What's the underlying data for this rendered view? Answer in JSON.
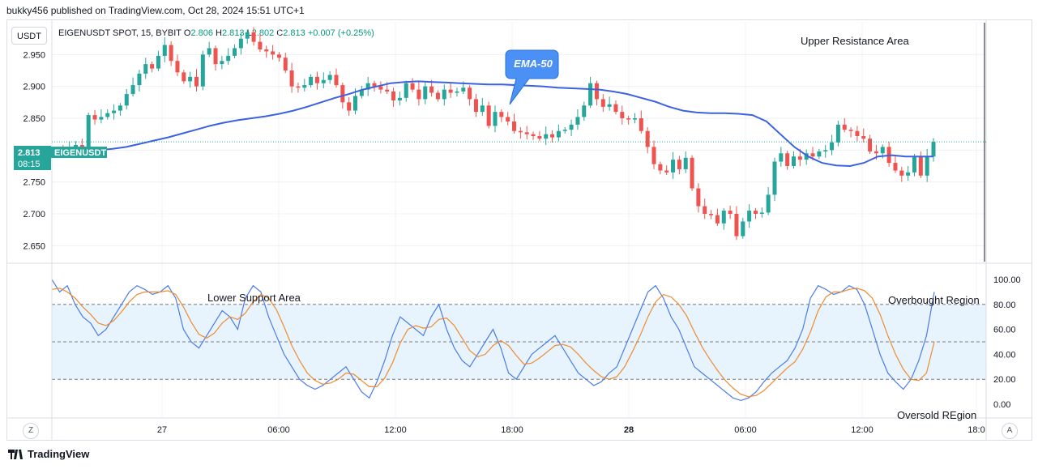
{
  "header": {
    "published": "bukky456 published on TradingView.com, Oct 28, 2024 15:51 UTC+1"
  },
  "toolbar": {
    "currency": "USDT",
    "left_button": "Z",
    "right_button": "A"
  },
  "legend": {
    "symbol": "EIGENUSDT SPOT, 15, BYBIT",
    "open_label": "O",
    "open": "2.806",
    "high_label": "H",
    "high": "2.813",
    "low_label": "L",
    "low": "2.802",
    "close_label": "C",
    "close": "2.813",
    "change": "+0.007 (+0.25%)"
  },
  "price_tag": {
    "symbol": "EIGENUSDT",
    "price": "2.813",
    "countdown": "08:15"
  },
  "annotations": {
    "ema": "EMA-50",
    "upper": "Upper Resistance Area",
    "lower": "Lower Support Area",
    "overbought": "Overbought Region",
    "oversold": "Oversold REgion"
  },
  "footer": {
    "brand": "TradingView"
  },
  "colors": {
    "up": "#26a69a",
    "down": "#ef5350",
    "ema": "#3b62e0",
    "stoch_k": "#4c7be8",
    "stoch_d": "#f08a2e",
    "band": "#e3f2fd"
  },
  "chart_data": [
    {
      "type": "candlestick",
      "title": "",
      "x_ticks": [
        "27",
        "06:00",
        "12:00",
        "18:00",
        "28",
        "06:00",
        "12:00",
        "18:0"
      ],
      "y_ticks": [
        "2.950",
        "2.900",
        "2.850",
        "2.800",
        "2.750",
        "2.700",
        "2.650"
      ],
      "ylim": [
        2.625,
        3.0
      ],
      "grid": true,
      "current_price": 2.813,
      "ohlc_close": [
        2.8,
        2.798,
        2.802,
        2.808,
        2.802,
        2.855,
        2.848,
        2.852,
        2.858,
        2.862,
        2.87,
        2.888,
        2.902,
        2.92,
        2.935,
        2.928,
        2.948,
        2.965,
        2.94,
        2.922,
        2.908,
        2.915,
        2.9,
        2.95,
        2.96,
        2.935,
        2.94,
        2.948,
        2.96,
        2.975,
        2.985,
        2.97,
        2.958,
        2.955,
        2.95,
        2.945,
        2.925,
        2.9,
        2.898,
        2.902,
        2.915,
        2.905,
        2.91,
        2.918,
        2.902,
        2.875,
        2.862,
        2.885,
        2.895,
        2.905,
        2.9,
        2.895,
        2.892,
        2.878,
        2.882,
        2.905,
        2.895,
        2.88,
        2.9,
        2.89,
        2.88,
        2.895,
        2.89,
        2.892,
        2.898,
        2.88,
        2.86,
        2.87,
        2.838,
        2.86,
        2.852,
        2.845,
        2.83,
        2.828,
        2.825,
        2.822,
        2.818,
        2.825,
        2.82,
        2.83,
        2.832,
        2.84,
        2.852,
        2.87,
        2.905,
        2.88,
        2.868,
        2.872,
        2.86,
        2.85,
        2.848,
        2.85,
        2.83,
        2.805,
        2.778,
        2.768,
        2.765,
        2.785,
        2.77,
        2.788,
        2.74,
        2.712,
        2.7,
        2.698,
        2.685,
        2.705,
        2.7,
        2.665,
        2.688,
        2.705,
        2.7,
        2.702,
        2.73,
        2.782,
        2.795,
        2.775,
        2.79,
        2.785,
        2.795,
        2.79,
        2.798,
        2.8,
        2.812,
        2.84,
        2.832,
        2.83,
        2.822,
        2.818,
        2.798,
        2.795,
        2.805,
        2.78,
        2.768,
        2.76,
        2.765,
        2.79,
        2.76,
        2.79,
        2.813
      ],
      "ema": {
        "name": "EMA-50",
        "values": [
          2.795,
          2.797,
          2.799,
          2.8,
          2.802,
          2.805,
          2.81,
          2.815,
          2.82,
          2.826,
          2.832,
          2.838,
          2.843,
          2.847,
          2.85,
          2.853,
          2.857,
          2.862,
          2.868,
          2.875,
          2.882,
          2.888,
          2.895,
          2.9,
          2.905,
          2.907,
          2.908,
          2.907,
          2.906,
          2.905,
          2.904,
          2.903,
          2.903,
          2.902,
          2.901,
          2.9,
          2.898,
          2.897,
          2.896,
          2.895,
          2.892,
          2.888,
          2.882,
          2.876,
          2.868,
          2.862,
          2.859,
          2.858,
          2.858,
          2.857,
          2.855,
          2.845,
          2.825,
          2.805,
          2.79,
          2.78,
          2.776,
          2.775,
          2.78,
          2.79,
          2.792,
          2.79,
          2.79,
          2.79
        ]
      }
    },
    {
      "type": "line",
      "title": "",
      "y_ticks": [
        "100.00",
        "80.00",
        "60.00",
        "40.00",
        "20.00",
        "0.00"
      ],
      "ylim": [
        0,
        100
      ],
      "band": [
        20,
        80
      ],
      "levels": [
        20,
        50,
        80
      ],
      "series": [
        {
          "values": [
            100,
            90,
            95,
            80,
            70,
            65,
            55,
            60,
            70,
            80,
            90,
            95,
            92,
            88,
            90,
            95,
            85,
            60,
            50,
            45,
            55,
            65,
            75,
            70,
            60,
            85,
            95,
            90,
            70,
            55,
            40,
            30,
            20,
            15,
            12,
            15,
            20,
            25,
            30,
            20,
            10,
            5,
            18,
            35,
            55,
            70,
            65,
            60,
            55,
            70,
            80,
            60,
            45,
            35,
            30,
            40,
            50,
            60,
            45,
            25,
            20,
            30,
            40,
            45,
            50,
            55,
            45,
            35,
            25,
            20,
            15,
            18,
            25,
            30,
            45,
            60,
            75,
            90,
            95,
            85,
            70,
            60,
            45,
            30,
            25,
            20,
            15,
            10,
            5,
            3,
            5,
            10,
            18,
            25,
            30,
            35,
            45,
            60,
            85,
            95,
            92,
            88,
            90,
            95,
            92,
            80,
            60,
            40,
            25,
            18,
            12,
            20,
            35,
            55,
            90
          ]
        },
        {
          "values": [
            92,
            93,
            90,
            85,
            78,
            72,
            65,
            63,
            67,
            74,
            82,
            88,
            90,
            90,
            90,
            91,
            88,
            78,
            66,
            56,
            53,
            57,
            65,
            70,
            68,
            73,
            82,
            88,
            85,
            76,
            62,
            47,
            35,
            25,
            19,
            16,
            17,
            20,
            25,
            24,
            19,
            14,
            14,
            21,
            33,
            49,
            60,
            63,
            61,
            62,
            68,
            69,
            63,
            53,
            43,
            38,
            40,
            47,
            51,
            47,
            39,
            32,
            33,
            37,
            42,
            47,
            48,
            46,
            40,
            33,
            27,
            22,
            20,
            22,
            30,
            42,
            55,
            70,
            82,
            88,
            86,
            80,
            71,
            58,
            46,
            36,
            27,
            19,
            13,
            8,
            6,
            7,
            11,
            17,
            23,
            29,
            34,
            44,
            58,
            75,
            86,
            90,
            90,
            92,
            93,
            91,
            85,
            72,
            55,
            40,
            28,
            20,
            19,
            25,
            50
          ]
        }
      ]
    }
  ]
}
